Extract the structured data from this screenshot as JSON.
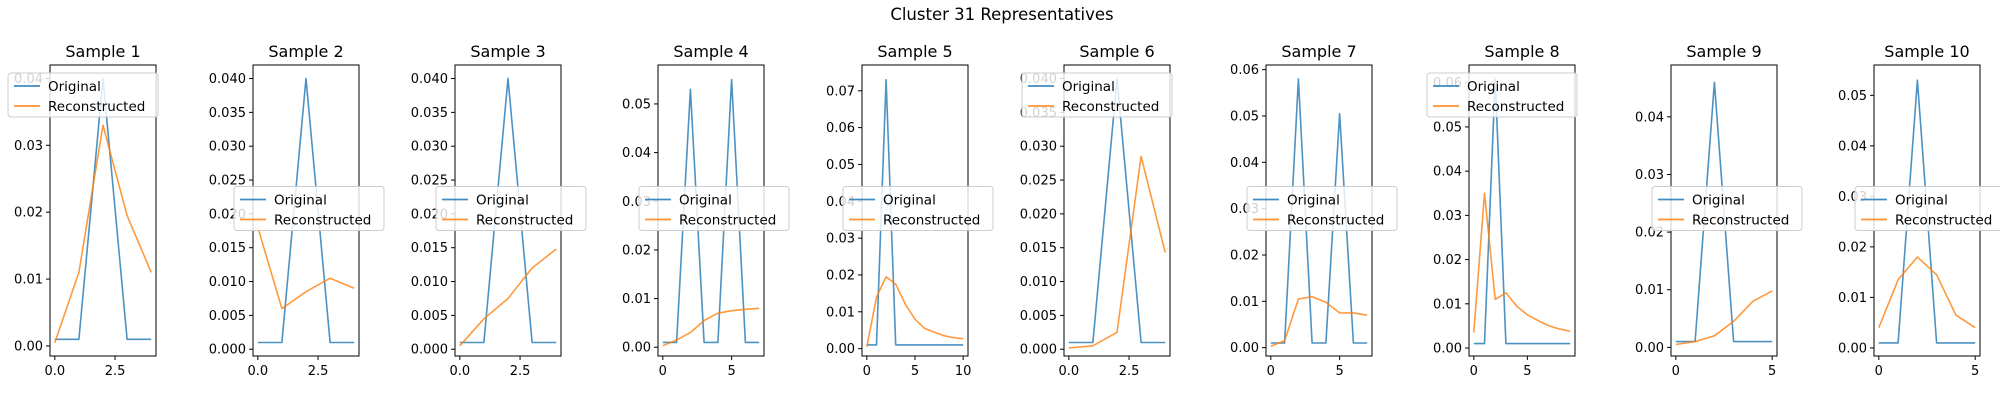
{
  "figure": {
    "title": "Cluster 31 Representatives"
  },
  "colors": {
    "original": "#1f77b4",
    "reconstructed": "#ff7f0e"
  },
  "legend_labels": [
    "Original",
    "Reconstructed"
  ],
  "chart_data": [
    {
      "type": "line",
      "title": "Sample 1",
      "xlim": [
        -0.2,
        4.2
      ],
      "ylim": [
        -0.0015,
        0.042
      ],
      "xticks": [
        0,
        2.5
      ],
      "xticklabels": [
        "0.0",
        "2.5"
      ],
      "yticks": [
        0,
        0.01,
        0.02,
        0.03,
        0.04
      ],
      "yticklabels": [
        "0.00",
        "0.01",
        "0.02",
        "0.03",
        "0.04"
      ],
      "legend": "upper-left",
      "series": [
        {
          "name": "Original",
          "x": [
            0,
            1,
            2,
            3,
            4
          ],
          "y": [
            0.001,
            0.001,
            0.04,
            0.001,
            0.001
          ]
        },
        {
          "name": "Reconstructed",
          "x": [
            0,
            1,
            2,
            3,
            4
          ],
          "y": [
            0.0005,
            0.011,
            0.033,
            0.0195,
            0.011
          ]
        }
      ]
    },
    {
      "type": "line",
      "title": "Sample 2",
      "xlim": [
        -0.2,
        4.2
      ],
      "ylim": [
        -0.001,
        0.042
      ],
      "xticks": [
        0,
        2.5
      ],
      "xticklabels": [
        "0.0",
        "2.5"
      ],
      "yticks": [
        0,
        0.005,
        0.01,
        0.015,
        0.02,
        0.025,
        0.03,
        0.035,
        0.04
      ],
      "yticklabels": [
        "0.000",
        "0.005",
        "0.010",
        "0.015",
        "0.020",
        "0.025",
        "0.030",
        "0.035",
        "0.040"
      ],
      "legend": "center",
      "series": [
        {
          "name": "Original",
          "x": [
            0,
            1,
            2,
            3,
            4
          ],
          "y": [
            0.001,
            0.001,
            0.04,
            0.001,
            0.001
          ]
        },
        {
          "name": "Reconstructed",
          "x": [
            0,
            1,
            2,
            3,
            4
          ],
          "y": [
            0.018,
            0.006,
            0.0085,
            0.0105,
            0.009
          ]
        }
      ]
    },
    {
      "type": "line",
      "title": "Sample 3",
      "xlim": [
        -0.2,
        4.2
      ],
      "ylim": [
        -0.001,
        0.042
      ],
      "xticks": [
        0,
        2.5
      ],
      "xticklabels": [
        "0.0",
        "2.5"
      ],
      "yticks": [
        0,
        0.005,
        0.01,
        0.015,
        0.02,
        0.025,
        0.03,
        0.035,
        0.04
      ],
      "yticklabels": [
        "0.000",
        "0.005",
        "0.010",
        "0.015",
        "0.020",
        "0.025",
        "0.030",
        "0.035",
        "0.040"
      ],
      "legend": "center",
      "series": [
        {
          "name": "Original",
          "x": [
            0,
            1,
            2,
            3,
            4
          ],
          "y": [
            0.001,
            0.001,
            0.04,
            0.001,
            0.001
          ]
        },
        {
          "name": "Reconstructed",
          "x": [
            0,
            1,
            2,
            3,
            4
          ],
          "y": [
            0.0005,
            0.0045,
            0.0075,
            0.012,
            0.0148
          ]
        }
      ]
    },
    {
      "type": "line",
      "title": "Sample 4",
      "xlim": [
        -0.35,
        7.35
      ],
      "ylim": [
        -0.0018,
        0.058
      ],
      "xticks": [
        0,
        5
      ],
      "xticklabels": [
        "0",
        "5"
      ],
      "yticks": [
        0,
        0.01,
        0.02,
        0.03,
        0.04,
        0.05
      ],
      "yticklabels": [
        "0.00",
        "0.01",
        "0.02",
        "0.03",
        "0.04",
        "0.05"
      ],
      "legend": "center",
      "series": [
        {
          "name": "Original",
          "x": [
            0,
            1,
            2,
            3,
            4,
            5,
            6,
            7
          ],
          "y": [
            0.001,
            0.001,
            0.053,
            0.001,
            0.001,
            0.055,
            0.001,
            0.001
          ]
        },
        {
          "name": "Reconstructed",
          "x": [
            0,
            1,
            2,
            3,
            4,
            5,
            6,
            7
          ],
          "y": [
            0.0003,
            0.0015,
            0.003,
            0.0055,
            0.007,
            0.0075,
            0.0078,
            0.008
          ]
        }
      ]
    },
    {
      "type": "line",
      "title": "Sample 5",
      "xlim": [
        -0.5,
        10.5
      ],
      "ylim": [
        -0.002,
        0.077
      ],
      "xticks": [
        0,
        5,
        10
      ],
      "xticklabels": [
        "0",
        "5",
        "10"
      ],
      "yticks": [
        0,
        0.01,
        0.02,
        0.03,
        0.04,
        0.05,
        0.06,
        0.07
      ],
      "yticklabels": [
        "0.00",
        "0.01",
        "0.02",
        "0.03",
        "0.04",
        "0.05",
        "0.06",
        "0.07"
      ],
      "legend": "center",
      "series": [
        {
          "name": "Original",
          "x": [
            0,
            1,
            2,
            3,
            4,
            5,
            6,
            7,
            8,
            9,
            10
          ],
          "y": [
            0.001,
            0.001,
            0.073,
            0.001,
            0.001,
            0.001,
            0.001,
            0.001,
            0.001,
            0.001,
            0.001
          ]
        },
        {
          "name": "Reconstructed",
          "x": [
            0,
            1,
            2,
            3,
            4,
            5,
            6,
            7,
            8,
            9,
            10
          ],
          "y": [
            0.0005,
            0.014,
            0.0195,
            0.0175,
            0.012,
            0.008,
            0.0055,
            0.0045,
            0.0035,
            0.003,
            0.0027
          ]
        }
      ]
    },
    {
      "type": "line",
      "title": "Sample 6",
      "xlim": [
        -0.2,
        4.2
      ],
      "ylim": [
        -0.001,
        0.042
      ],
      "xticks": [
        0,
        2.5
      ],
      "xticklabels": [
        "0.0",
        "2.5"
      ],
      "yticks": [
        0,
        0.005,
        0.01,
        0.015,
        0.02,
        0.025,
        0.03,
        0.035,
        0.04
      ],
      "yticklabels": [
        "0.000",
        "0.005",
        "0.010",
        "0.015",
        "0.020",
        "0.025",
        "0.030",
        "0.035",
        "0.040"
      ],
      "legend": "upper-left",
      "series": [
        {
          "name": "Original",
          "x": [
            0,
            1,
            2,
            3,
            4
          ],
          "y": [
            0.001,
            0.001,
            0.04,
            0.001,
            0.001
          ]
        },
        {
          "name": "Reconstructed",
          "x": [
            0,
            1,
            2,
            3,
            4
          ],
          "y": [
            0.0002,
            0.0005,
            0.0025,
            0.0285,
            0.0143
          ]
        }
      ]
    },
    {
      "type": "line",
      "title": "Sample 7",
      "xlim": [
        -0.35,
        7.35
      ],
      "ylim": [
        -0.0018,
        0.061
      ],
      "xticks": [
        0,
        5
      ],
      "xticklabels": [
        "0",
        "5"
      ],
      "yticks": [
        0,
        0.01,
        0.02,
        0.03,
        0.04,
        0.05,
        0.06
      ],
      "yticklabels": [
        "0.00",
        "0.01",
        "0.02",
        "0.03",
        "0.04",
        "0.05",
        "0.06"
      ],
      "legend": "center",
      "series": [
        {
          "name": "Original",
          "x": [
            0,
            1,
            2,
            3,
            4,
            5,
            6,
            7
          ],
          "y": [
            0.001,
            0.001,
            0.058,
            0.001,
            0.001,
            0.0505,
            0.001,
            0.001
          ]
        },
        {
          "name": "Reconstructed",
          "x": [
            0,
            1,
            2,
            3,
            4,
            5,
            6,
            7
          ],
          "y": [
            0.0003,
            0.0015,
            0.0105,
            0.011,
            0.0098,
            0.0075,
            0.0075,
            0.007
          ]
        }
      ]
    },
    {
      "type": "line",
      "title": "Sample 8",
      "xlim": [
        -0.45,
        9.45
      ],
      "ylim": [
        -0.0018,
        0.064
      ],
      "xticks": [
        0,
        5
      ],
      "xticklabels": [
        "0",
        "5"
      ],
      "yticks": [
        0,
        0.01,
        0.02,
        0.03,
        0.04,
        0.05,
        0.06
      ],
      "yticklabels": [
        "0.00",
        "0.01",
        "0.02",
        "0.03",
        "0.04",
        "0.05",
        "0.06"
      ],
      "legend": "upper-left",
      "series": [
        {
          "name": "Original",
          "x": [
            0,
            1,
            2,
            3,
            4,
            5,
            6,
            7,
            8,
            9
          ],
          "y": [
            0.001,
            0.001,
            0.061,
            0.001,
            0.001,
            0.001,
            0.001,
            0.001,
            0.001,
            0.001
          ]
        },
        {
          "name": "Reconstructed",
          "x": [
            0,
            1,
            2,
            3,
            4,
            5,
            6,
            7,
            8,
            9
          ],
          "y": [
            0.0035,
            0.035,
            0.011,
            0.0125,
            0.0095,
            0.0075,
            0.0062,
            0.005,
            0.0043,
            0.0038
          ]
        }
      ]
    },
    {
      "type": "line",
      "title": "Sample 9",
      "xlim": [
        -0.25,
        5.25
      ],
      "ylim": [
        -0.0015,
        0.049
      ],
      "xticks": [
        0,
        5
      ],
      "xticklabels": [
        "0",
        "5"
      ],
      "yticks": [
        0,
        0.01,
        0.02,
        0.03,
        0.04
      ],
      "yticklabels": [
        "0.00",
        "0.01",
        "0.02",
        "0.03",
        "0.04"
      ],
      "legend": "center",
      "series": [
        {
          "name": "Original",
          "x": [
            0,
            1,
            2,
            3,
            4,
            5
          ],
          "y": [
            0.001,
            0.001,
            0.046,
            0.001,
            0.001,
            0.001
          ]
        },
        {
          "name": "Reconstructed",
          "x": [
            0,
            1,
            2,
            3,
            4,
            5
          ],
          "y": [
            0.0005,
            0.001,
            0.002,
            0.0045,
            0.008,
            0.0098
          ]
        }
      ]
    },
    {
      "type": "line",
      "title": "Sample 10",
      "xlim": [
        -0.25,
        5.25
      ],
      "ylim": [
        -0.0016,
        0.056
      ],
      "xticks": [
        0,
        5
      ],
      "xticklabels": [
        "0",
        "5"
      ],
      "yticks": [
        0,
        0.01,
        0.02,
        0.03,
        0.04,
        0.05
      ],
      "yticklabels": [
        "0.00",
        "0.01",
        "0.02",
        "0.03",
        "0.04",
        "0.05"
      ],
      "legend": "center",
      "series": [
        {
          "name": "Original",
          "x": [
            0,
            1,
            2,
            3,
            4,
            5
          ],
          "y": [
            0.001,
            0.001,
            0.053,
            0.001,
            0.001,
            0.001
          ]
        },
        {
          "name": "Reconstructed",
          "x": [
            0,
            1,
            2,
            3,
            4,
            5
          ],
          "y": [
            0.004,
            0.0135,
            0.018,
            0.0145,
            0.0065,
            0.004
          ]
        }
      ]
    }
  ]
}
